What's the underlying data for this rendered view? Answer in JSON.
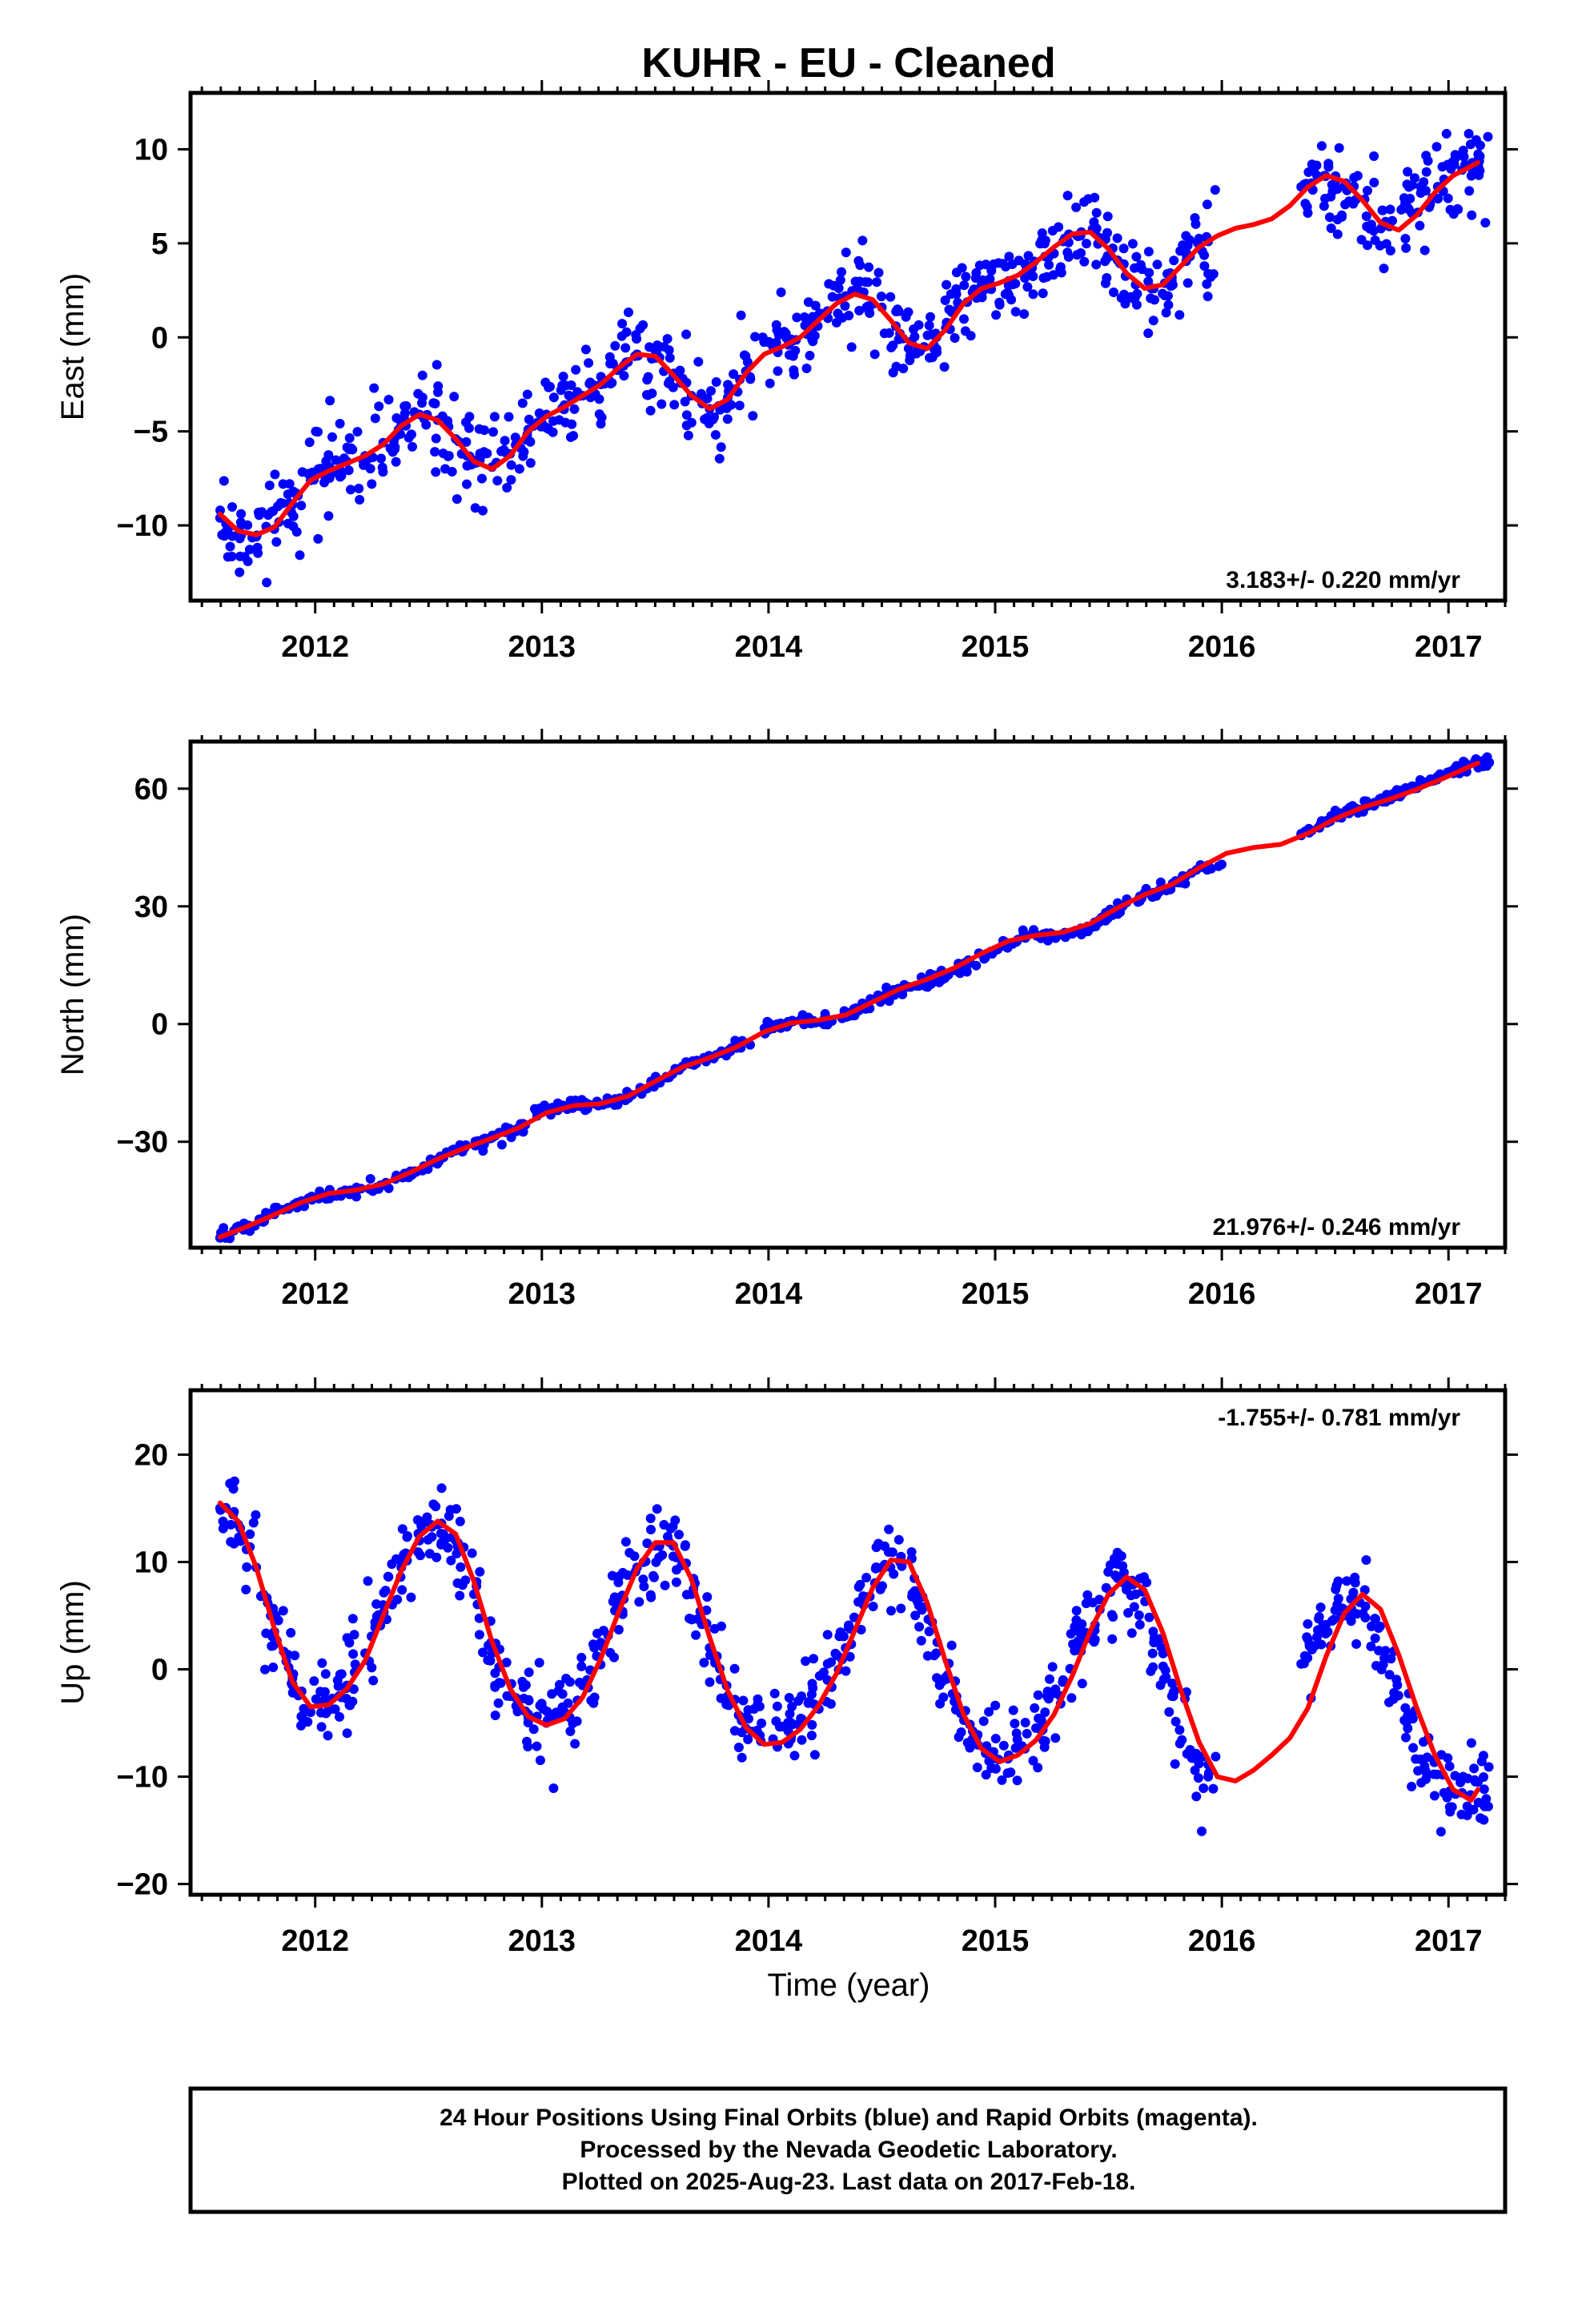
{
  "title": "KUHR  - EU - Cleaned",
  "xlabel": "Time (year)",
  "colors": {
    "data": "#0000ff",
    "model": "#ff0000",
    "frame": "#000000"
  },
  "chart_data": [
    {
      "type": "scatter",
      "component": "East",
      "ylabel": "East (mm)",
      "xlim": [
        2011.45,
        2017.25
      ],
      "ylim": [
        -14,
        13
      ],
      "yticks": [
        10,
        5,
        0,
        -5,
        -10
      ],
      "ytick_labels": [
        "10",
        "5",
        "0",
        "−5",
        "−10"
      ],
      "xticks": [
        2012,
        2013,
        2014,
        2015,
        2016,
        2017
      ],
      "xtick_labels": [
        "2012",
        "2013",
        "2014",
        "2015",
        "2016",
        "2017"
      ],
      "rate_label": "3.183+/- 0.220 mm/yr",
      "rate_position": "bottom-right",
      "series": [
        {
          "kind": "points",
          "x": [
            2011.58,
            2011.66,
            2011.74,
            2011.82,
            2011.9,
            2011.98,
            2012.06,
            2012.14,
            2012.22,
            2012.3,
            2012.38,
            2012.46,
            2012.54,
            2012.62,
            2012.7,
            2012.78,
            2012.86,
            2012.94,
            2013.02,
            2013.1,
            2013.18,
            2013.26,
            2013.34,
            2013.42,
            2013.5,
            2013.58,
            2013.66,
            2013.74,
            2013.82,
            2013.9,
            2014.02,
            2014.1,
            2014.18,
            2014.26,
            2014.34,
            2014.42,
            2014.5,
            2014.58,
            2014.66,
            2014.74,
            2014.82,
            2014.9,
            2014.98,
            2015.06,
            2015.14,
            2015.22,
            2015.3,
            2015.38,
            2015.46,
            2015.54,
            2015.62,
            2015.7,
            2015.78,
            2015.86,
            2015.94,
            2016.35,
            2016.42,
            2016.5,
            2016.58,
            2016.66,
            2016.74,
            2016.82,
            2016.9,
            2016.98,
            2017.06,
            2017.13
          ],
          "y": [
            -9.6,
            -10.5,
            -10.6,
            -10.2,
            -8.9,
            -7.6,
            -7.0,
            -6.6,
            -6.3,
            -5.6,
            -4.6,
            -4.1,
            -4.4,
            -5.4,
            -6.7,
            -6.9,
            -6.2,
            -4.9,
            -4.1,
            -3.6,
            -3.1,
            -2.5,
            -1.7,
            -0.9,
            -1.1,
            -2.0,
            -3.1,
            -3.8,
            -3.2,
            -1.8,
            -0.5,
            -0.1,
            0.6,
            1.4,
            2.2,
            2.4,
            1.6,
            0.2,
            -0.6,
            0.0,
            1.4,
            2.4,
            2.8,
            3.0,
            3.5,
            4.3,
            5.1,
            5.6,
            5.3,
            4.1,
            2.8,
            2.6,
            3.2,
            4.3,
            5.1,
            8.0,
            8.6,
            8.2,
            7.1,
            6.0,
            5.9,
            6.9,
            7.8,
            8.4,
            8.9,
            9.2
          ]
        },
        {
          "kind": "model",
          "x": [
            2011.58,
            2011.66,
            2011.74,
            2011.82,
            2011.9,
            2011.98,
            2012.06,
            2012.14,
            2012.22,
            2012.3,
            2012.38,
            2012.46,
            2012.54,
            2012.62,
            2012.7,
            2012.78,
            2012.86,
            2012.94,
            2013.02,
            2013.1,
            2013.18,
            2013.26,
            2013.34,
            2013.42,
            2013.5,
            2013.58,
            2013.66,
            2013.74,
            2013.82,
            2013.9,
            2013.98,
            2014.06,
            2014.14,
            2014.22,
            2014.3,
            2014.38,
            2014.46,
            2014.54,
            2014.62,
            2014.7,
            2014.78,
            2014.86,
            2014.94,
            2015.02,
            2015.1,
            2015.18,
            2015.26,
            2015.34,
            2015.42,
            2015.5,
            2015.58,
            2015.66,
            2015.74,
            2015.82,
            2015.9,
            2015.98,
            2016.06,
            2016.14,
            2016.22,
            2016.3,
            2016.38,
            2016.46,
            2016.54,
            2016.62,
            2016.7,
            2016.78,
            2016.86,
            2016.94,
            2017.02,
            2017.1,
            2017.13
          ],
          "y": [
            -9.4,
            -10.3,
            -10.5,
            -10.1,
            -8.8,
            -7.6,
            -7.1,
            -6.7,
            -6.3,
            -5.7,
            -4.7,
            -4.1,
            -4.4,
            -5.4,
            -6.6,
            -7.0,
            -6.3,
            -5.0,
            -4.2,
            -3.7,
            -3.1,
            -2.5,
            -1.6,
            -0.9,
            -1.0,
            -2.0,
            -3.1,
            -3.8,
            -3.3,
            -1.9,
            -0.9,
            -0.5,
            0.0,
            0.9,
            1.8,
            2.3,
            2.0,
            0.9,
            -0.3,
            -0.6,
            0.4,
            1.8,
            2.6,
            2.9,
            3.3,
            4.0,
            4.8,
            5.5,
            5.6,
            4.7,
            3.4,
            2.6,
            2.8,
            3.8,
            4.8,
            5.4,
            5.8,
            6.0,
            6.3,
            7.0,
            8.0,
            8.6,
            8.3,
            7.3,
            6.1,
            5.7,
            6.5,
            7.7,
            8.6,
            9.1,
            9.3
          ]
        }
      ]
    },
    {
      "type": "scatter",
      "component": "North",
      "ylabel": "North (mm)",
      "xlim": [
        2011.45,
        2017.25
      ],
      "ylim": [
        -57,
        72
      ],
      "yticks": [
        60,
        30,
        0,
        -30
      ],
      "ytick_labels": [
        "60",
        "30",
        "0",
        "−30"
      ],
      "xticks": [
        2012,
        2013,
        2014,
        2015,
        2016,
        2017
      ],
      "xtick_labels": [
        "2012",
        "2013",
        "2014",
        "2015",
        "2016",
        "2017"
      ],
      "rate_label": "21.976+/- 0.246 mm/yr",
      "rate_position": "bottom-right",
      "series": [
        {
          "kind": "points",
          "x": [
            2011.58,
            2011.7,
            2011.82,
            2011.94,
            2012.06,
            2012.18,
            2012.3,
            2012.42,
            2012.54,
            2012.66,
            2012.78,
            2012.9,
            2013.02,
            2013.14,
            2013.26,
            2013.38,
            2013.5,
            2013.62,
            2013.74,
            2013.86,
            2014.02,
            2014.14,
            2014.26,
            2014.38,
            2014.5,
            2014.62,
            2014.74,
            2014.86,
            2014.98,
            2015.1,
            2015.22,
            2015.34,
            2015.46,
            2015.58,
            2015.7,
            2015.82,
            2015.94,
            2016.35,
            2016.45,
            2016.55,
            2016.65,
            2016.75,
            2016.85,
            2016.95,
            2017.05,
            2017.13
          ],
          "y": [
            -54.5,
            -51.8,
            -48.5,
            -45.2,
            -43.0,
            -42.5,
            -41.0,
            -38.0,
            -34.5,
            -31.5,
            -29.0,
            -26.5,
            -22.0,
            -20.3,
            -20.5,
            -18.5,
            -14.5,
            -10.8,
            -8.5,
            -6.0,
            -0.3,
            1.0,
            0.8,
            3.2,
            6.5,
            9.5,
            11.5,
            14.5,
            18.5,
            21.5,
            22.8,
            23.0,
            26.0,
            31.0,
            33.5,
            36.0,
            40.5,
            48.5,
            51.5,
            54.5,
            56.0,
            58.0,
            60.5,
            63.0,
            65.5,
            67.0
          ]
        },
        {
          "kind": "model",
          "x": [
            2011.58,
            2011.7,
            2011.82,
            2011.94,
            2012.06,
            2012.18,
            2012.3,
            2012.42,
            2012.54,
            2012.66,
            2012.78,
            2012.9,
            2013.02,
            2013.14,
            2013.26,
            2013.38,
            2013.5,
            2013.62,
            2013.74,
            2013.86,
            2013.98,
            2014.1,
            2014.22,
            2014.34,
            2014.46,
            2014.58,
            2014.7,
            2014.82,
            2014.94,
            2015.06,
            2015.18,
            2015.3,
            2015.42,
            2015.54,
            2015.66,
            2015.78,
            2015.9,
            2016.02,
            2016.14,
            2016.26,
            2016.38,
            2016.5,
            2016.62,
            2016.74,
            2016.86,
            2016.98,
            2017.1,
            2017.13
          ],
          "y": [
            -54.3,
            -51.6,
            -48.6,
            -45.4,
            -43.2,
            -42.3,
            -40.8,
            -37.8,
            -34.4,
            -31.6,
            -29.1,
            -26.4,
            -22.6,
            -20.8,
            -20.3,
            -18.4,
            -14.6,
            -11.0,
            -8.6,
            -5.8,
            -2.0,
            0.3,
            1.0,
            2.3,
            5.6,
            9.0,
            11.4,
            14.3,
            18.0,
            21.2,
            22.6,
            23.4,
            25.6,
            29.6,
            33.0,
            35.6,
            39.8,
            43.5,
            45.0,
            45.8,
            48.6,
            52.3,
            55.2,
            57.3,
            59.8,
            62.7,
            65.8,
            66.5
          ]
        }
      ]
    },
    {
      "type": "scatter",
      "component": "Up",
      "ylabel": "Up (mm)",
      "xlim": [
        2011.45,
        2017.25
      ],
      "ylim": [
        -21,
        26
      ],
      "yticks": [
        20,
        10,
        0,
        -10,
        -20
      ],
      "ytick_labels": [
        "20",
        "10",
        "0",
        "−10",
        "−20"
      ],
      "xticks": [
        2012,
        2013,
        2014,
        2015,
        2016,
        2017
      ],
      "xtick_labels": [
        "2012",
        "2013",
        "2014",
        "2015",
        "2016",
        "2017"
      ],
      "rate_label": "-1.755+/- 0.781 mm/yr",
      "rate_position": "top-right",
      "series": [
        {
          "kind": "points",
          "x": [
            2011.58,
            2011.66,
            2011.74,
            2011.82,
            2011.9,
            2011.98,
            2012.06,
            2012.14,
            2012.22,
            2012.3,
            2012.38,
            2012.46,
            2012.54,
            2012.62,
            2012.7,
            2012.78,
            2012.86,
            2012.94,
            2013.02,
            2013.1,
            2013.18,
            2013.26,
            2013.34,
            2013.42,
            2013.5,
            2013.58,
            2013.66,
            2013.74,
            2013.82,
            2013.9,
            2014.02,
            2014.1,
            2014.18,
            2014.26,
            2014.34,
            2014.42,
            2014.5,
            2014.58,
            2014.66,
            2014.74,
            2014.82,
            2014.9,
            2014.98,
            2015.06,
            2015.14,
            2015.22,
            2015.3,
            2015.38,
            2015.46,
            2015.54,
            2015.62,
            2015.7,
            2015.78,
            2015.86,
            2015.94,
            2016.35,
            2016.42,
            2016.5,
            2016.58,
            2016.66,
            2016.74,
            2016.82,
            2016.9,
            2016.98,
            2017.06,
            2017.13
          ],
          "y": [
            15.0,
            13.5,
            9.5,
            3.5,
            -1.5,
            -4.0,
            -3.5,
            -1.5,
            1.5,
            6.0,
            9.5,
            12.0,
            13.5,
            12.0,
            7.0,
            1.5,
            -2.5,
            -4.5,
            -5.0,
            -4.0,
            -1.5,
            2.5,
            6.5,
            9.5,
            11.5,
            11.5,
            7.0,
            2.0,
            -2.5,
            -5.5,
            -6.5,
            -5.0,
            -3.0,
            -1.0,
            2.0,
            6.0,
            9.5,
            10.0,
            6.5,
            1.5,
            -3.0,
            -6.5,
            -8.5,
            -8.0,
            -6.0,
            -4.0,
            -1.0,
            3.0,
            6.5,
            8.5,
            7.0,
            2.5,
            -2.5,
            -7.5,
            -10.0,
            0.5,
            3.0,
            5.5,
            6.5,
            4.0,
            -0.5,
            -5.5,
            -9.5,
            -11.5,
            -11.5,
            -10.5
          ]
        },
        {
          "kind": "model",
          "x": [
            2011.58,
            2011.66,
            2011.74,
            2011.82,
            2011.9,
            2011.98,
            2012.06,
            2012.14,
            2012.22,
            2012.3,
            2012.38,
            2012.46,
            2012.54,
            2012.62,
            2012.7,
            2012.78,
            2012.86,
            2012.94,
            2013.02,
            2013.1,
            2013.18,
            2013.26,
            2013.34,
            2013.42,
            2013.5,
            2013.58,
            2013.66,
            2013.74,
            2013.82,
            2013.9,
            2013.98,
            2014.06,
            2014.14,
            2014.22,
            2014.3,
            2014.38,
            2014.46,
            2014.54,
            2014.62,
            2014.7,
            2014.78,
            2014.86,
            2014.94,
            2015.02,
            2015.1,
            2015.18,
            2015.26,
            2015.34,
            2015.42,
            2015.5,
            2015.58,
            2015.66,
            2015.74,
            2015.82,
            2015.9,
            2015.98,
            2016.06,
            2016.14,
            2016.22,
            2016.3,
            2016.38,
            2016.46,
            2016.54,
            2016.62,
            2016.7,
            2016.78,
            2016.86,
            2016.94,
            2017.02,
            2017.1,
            2017.13
          ],
          "y": [
            15.5,
            13.8,
            9.5,
            3.8,
            -1.2,
            -3.5,
            -3.3,
            -1.8,
            0.8,
            5.0,
            9.2,
            12.4,
            13.8,
            12.6,
            8.2,
            2.6,
            -1.8,
            -4.4,
            -5.2,
            -4.6,
            -2.6,
            1.0,
            5.4,
            9.4,
            11.8,
            11.8,
            8.4,
            3.0,
            -2.0,
            -5.4,
            -7.0,
            -6.8,
            -5.6,
            -3.4,
            -0.4,
            3.6,
            7.6,
            10.2,
            10.0,
            6.2,
            0.8,
            -4.2,
            -7.4,
            -8.6,
            -8.0,
            -6.6,
            -4.2,
            -0.6,
            3.6,
            7.0,
            8.6,
            7.4,
            3.4,
            -2.0,
            -6.8,
            -10.0,
            -10.4,
            -9.4,
            -8.0,
            -6.4,
            -3.6,
            1.2,
            5.2,
            7.0,
            5.6,
            1.4,
            -3.6,
            -8.0,
            -11.2,
            -12.2,
            -11.2
          ]
        }
      ]
    }
  ],
  "footer": {
    "line1": "24 Hour Positions Using Final Orbits (blue) and Rapid Orbits (magenta).",
    "line2": "Processed by the Nevada Geodetic Laboratory.",
    "line3": "Plotted on 2025-Aug-23. Last data on 2017-Feb-18."
  }
}
